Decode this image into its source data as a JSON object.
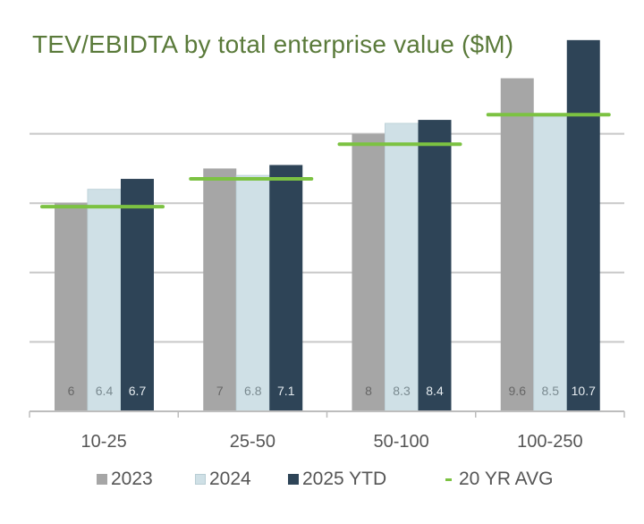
{
  "chart_data": {
    "type": "bar",
    "title": "TEV/EBIDTA by total enterprise value ($M)",
    "xlabel": "",
    "ylabel": "",
    "ylim": [
      0,
      10
    ],
    "gridlines": [
      2,
      4,
      6,
      8
    ],
    "grid": true,
    "legend_position": "bottom",
    "categories": [
      "10-25",
      "25-50",
      "50-100",
      "100-250"
    ],
    "series": [
      {
        "name": "2023",
        "color": "#a6a6a6",
        "label_color": "#666666",
        "values": [
          6,
          7,
          8,
          9.6
        ],
        "labels": [
          "6",
          "7",
          "8",
          "9.6"
        ]
      },
      {
        "name": "2024",
        "color": "#cfe0e6",
        "label_color": "#7a8a90",
        "values": [
          6.4,
          6.8,
          8.3,
          8.5
        ],
        "labels": [
          "6.4",
          "6.8",
          "8.3",
          "8.5"
        ]
      },
      {
        "name": "2025 YTD",
        "color": "#2e4457",
        "label_color": "#e6ecf0",
        "values": [
          6.7,
          7.1,
          8.4,
          10.7
        ],
        "labels": [
          "6.7",
          "7.1",
          "8.4",
          "10.7"
        ]
      }
    ],
    "average_line": {
      "name": "20 YR AVG",
      "color": "#7cc242",
      "values": [
        5.9,
        6.7,
        7.7,
        8.55
      ]
    }
  },
  "legend": {
    "items": [
      {
        "label": "2023",
        "color": "#a6a6a6",
        "kind": "box"
      },
      {
        "label": "2024",
        "color": "#cfe0e6",
        "kind": "box"
      },
      {
        "label": "2025 YTD",
        "color": "#2e4457",
        "kind": "box"
      },
      {
        "label": "20 YR AVG",
        "color": "#7cc242",
        "kind": "dash"
      }
    ]
  }
}
